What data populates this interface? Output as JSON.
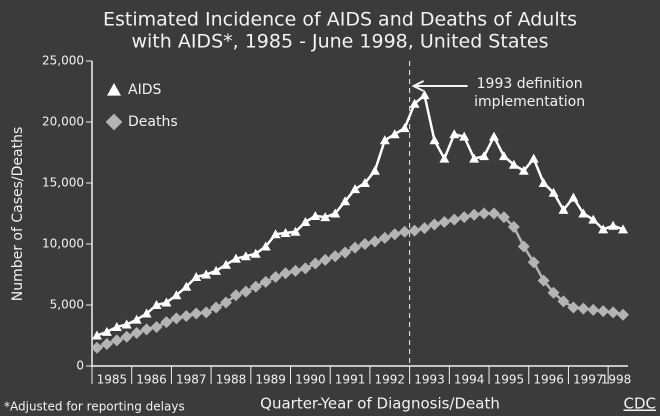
{
  "chart_data": {
    "type": "scatter",
    "title": [
      "Estimated Incidence of AIDS and Deaths of Adults",
      "with AIDS*, 1985 - June 1998, United States"
    ],
    "y_label": "Number of Cases/Deaths",
    "x_label": "Quarter-Year of Diagnosis/Death",
    "footnote": "*Adjusted for reporting delays",
    "source": "CDC",
    "annotation": {
      "text": [
        "1993 definition",
        "implementation"
      ],
      "x": 1993
    },
    "xlim": [
      1985,
      1998.5
    ],
    "xticks": [
      1985,
      1986,
      1987,
      1988,
      1989,
      1990,
      1991,
      1992,
      1993,
      1994,
      1995,
      1996,
      1997,
      1998
    ],
    "ylim": [
      0,
      25000
    ],
    "yticks": [
      0,
      {
        "value": 5000,
        "label": "5,000"
      },
      {
        "value": 10000,
        "label": "10,000"
      },
      {
        "value": 15000,
        "label": "15,000"
      },
      {
        "value": 20000,
        "label": "20,000"
      },
      {
        "value": 25000,
        "label": "25,000"
      }
    ],
    "legend": "upper left",
    "x": [
      1985.125,
      1985.375,
      1985.625,
      1985.875,
      1986.125,
      1986.375,
      1986.625,
      1986.875,
      1987.125,
      1987.375,
      1987.625,
      1987.875,
      1988.125,
      1988.375,
      1988.625,
      1988.875,
      1989.125,
      1989.375,
      1989.625,
      1989.875,
      1990.125,
      1990.375,
      1990.625,
      1990.875,
      1991.125,
      1991.375,
      1991.625,
      1991.875,
      1992.125,
      1992.375,
      1992.625,
      1992.875,
      1993.125,
      1993.375,
      1993.625,
      1993.875,
      1994.125,
      1994.375,
      1994.625,
      1994.875,
      1995.125,
      1995.375,
      1995.625,
      1995.875,
      1996.125,
      1996.375,
      1996.625,
      1996.875,
      1997.125,
      1997.375,
      1997.625,
      1997.875,
      1998.125,
      1998.375
    ],
    "series": [
      {
        "name": "AIDS",
        "color": "#ffffff",
        "marker": "triangle",
        "values": [
          2500,
          2800,
          3200,
          3400,
          3800,
          4300,
          5000,
          5200,
          5800,
          6500,
          7300,
          7500,
          7800,
          8300,
          8800,
          9000,
          9200,
          9800,
          10800,
          10900,
          11000,
          11800,
          12300,
          12200,
          12500,
          13500,
          14500,
          15000,
          16000,
          18500,
          19000,
          19500,
          21500,
          22200,
          18500,
          17000,
          19000,
          18800,
          17000,
          17200,
          18800,
          17200,
          16500,
          16000,
          17000,
          15000,
          14200,
          12800,
          13800,
          12500,
          12000,
          11200,
          11500,
          11200
        ]
      },
      {
        "name": "Deaths",
        "color": "#b4b4b4",
        "marker": "diamond",
        "values": [
          1500,
          1800,
          2100,
          2400,
          2700,
          3000,
          3200,
          3600,
          3900,
          4100,
          4300,
          4400,
          4800,
          5200,
          5800,
          6100,
          6500,
          6900,
          7300,
          7600,
          7800,
          8000,
          8400,
          8700,
          9000,
          9300,
          9700,
          10000,
          10200,
          10500,
          10800,
          11000,
          11100,
          11300,
          11600,
          11800,
          12000,
          12200,
          12400,
          12500,
          12500,
          12200,
          11400,
          9800,
          8500,
          7000,
          6000,
          5300,
          4800,
          4700,
          4600,
          4500,
          4400,
          4200
        ]
      }
    ]
  }
}
